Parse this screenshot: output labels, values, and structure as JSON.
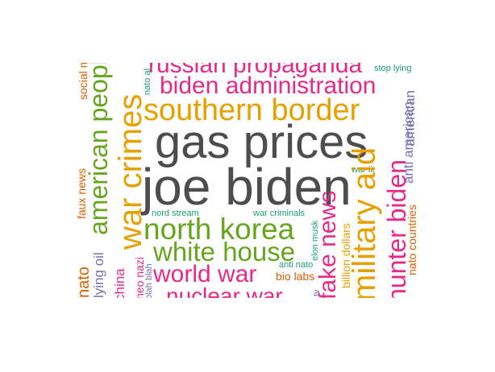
{
  "colors": {
    "gray": "#4d4d4d",
    "pink": "#e7298a",
    "orange": "#e6a000",
    "green": "#66a61e",
    "teal": "#1b9e77",
    "purple": "#7570b3",
    "rust": "#d95f02"
  },
  "words": {
    "gas_prices": {
      "text": "gas prices",
      "color": "gray"
    },
    "joe_biden": {
      "text": "joe biden",
      "color": "gray"
    },
    "southern_border": {
      "text": "southern border",
      "color": "orange"
    },
    "biden_administration": {
      "text": "biden administration",
      "color": "pink"
    },
    "russian_propaganda": {
      "text": "russian propaganda",
      "color": "pink"
    },
    "north_korea": {
      "text": "north korea",
      "color": "green"
    },
    "white_house": {
      "text": "white house",
      "color": "green"
    },
    "world_war": {
      "text": "world war",
      "color": "pink"
    },
    "nuclear_war": {
      "text": "nuclear war",
      "color": "pink"
    },
    "war_crimes": {
      "text": "war crimes",
      "color": "orange"
    },
    "american_people": {
      "text": "american people",
      "color": "green"
    },
    "military_aid": {
      "text": "military aid",
      "color": "orange"
    },
    "hunter_biden": {
      "text": "hunter biden",
      "color": "pink"
    },
    "fake_news": {
      "text": "fake news",
      "color": "pink"
    },
    "american": {
      "text": "american",
      "color": "purple"
    },
    "anti_american": {
      "text": "anti american",
      "color": "purple"
    },
    "nato_countries": {
      "text": "nato countries",
      "color": "rust"
    },
    "billion_dollars": {
      "text": "billion dollars",
      "color": "orange"
    },
    "elon_musk": {
      "text": "elon musk",
      "color": "teal"
    },
    "faux_news": {
      "text": "faux news",
      "color": "rust"
    },
    "social_media": {
      "text": "social media",
      "color": "rust"
    },
    "nato_alliance": {
      "text": "nato al",
      "color": "teal"
    },
    "lying_oil": {
      "text": "lying oil",
      "color": "purple"
    },
    "china": {
      "text": "china",
      "color": "pink"
    },
    "nato": {
      "text": "nato",
      "color": "rust"
    },
    "neo_nazi": {
      "text": "neo nazi",
      "color": "pink"
    },
    "blah_blah": {
      "text": "blah blah",
      "color": "purple"
    },
    "stop_lying": {
      "text": "stop lying",
      "color": "teal"
    },
    "war_iii": {
      "text": "war iii",
      "color": "teal"
    },
    "nord_stream": {
      "text": "nord stream",
      "color": "teal"
    },
    "war_criminals": {
      "text": "war criminals",
      "color": "teal"
    },
    "anti_nato": {
      "text": "anti nato",
      "color": "teal"
    },
    "bio_labs": {
      "text": "bio labs",
      "color": "rust"
    },
    "tv": {
      "text": "tv",
      "color": "purple"
    }
  }
}
